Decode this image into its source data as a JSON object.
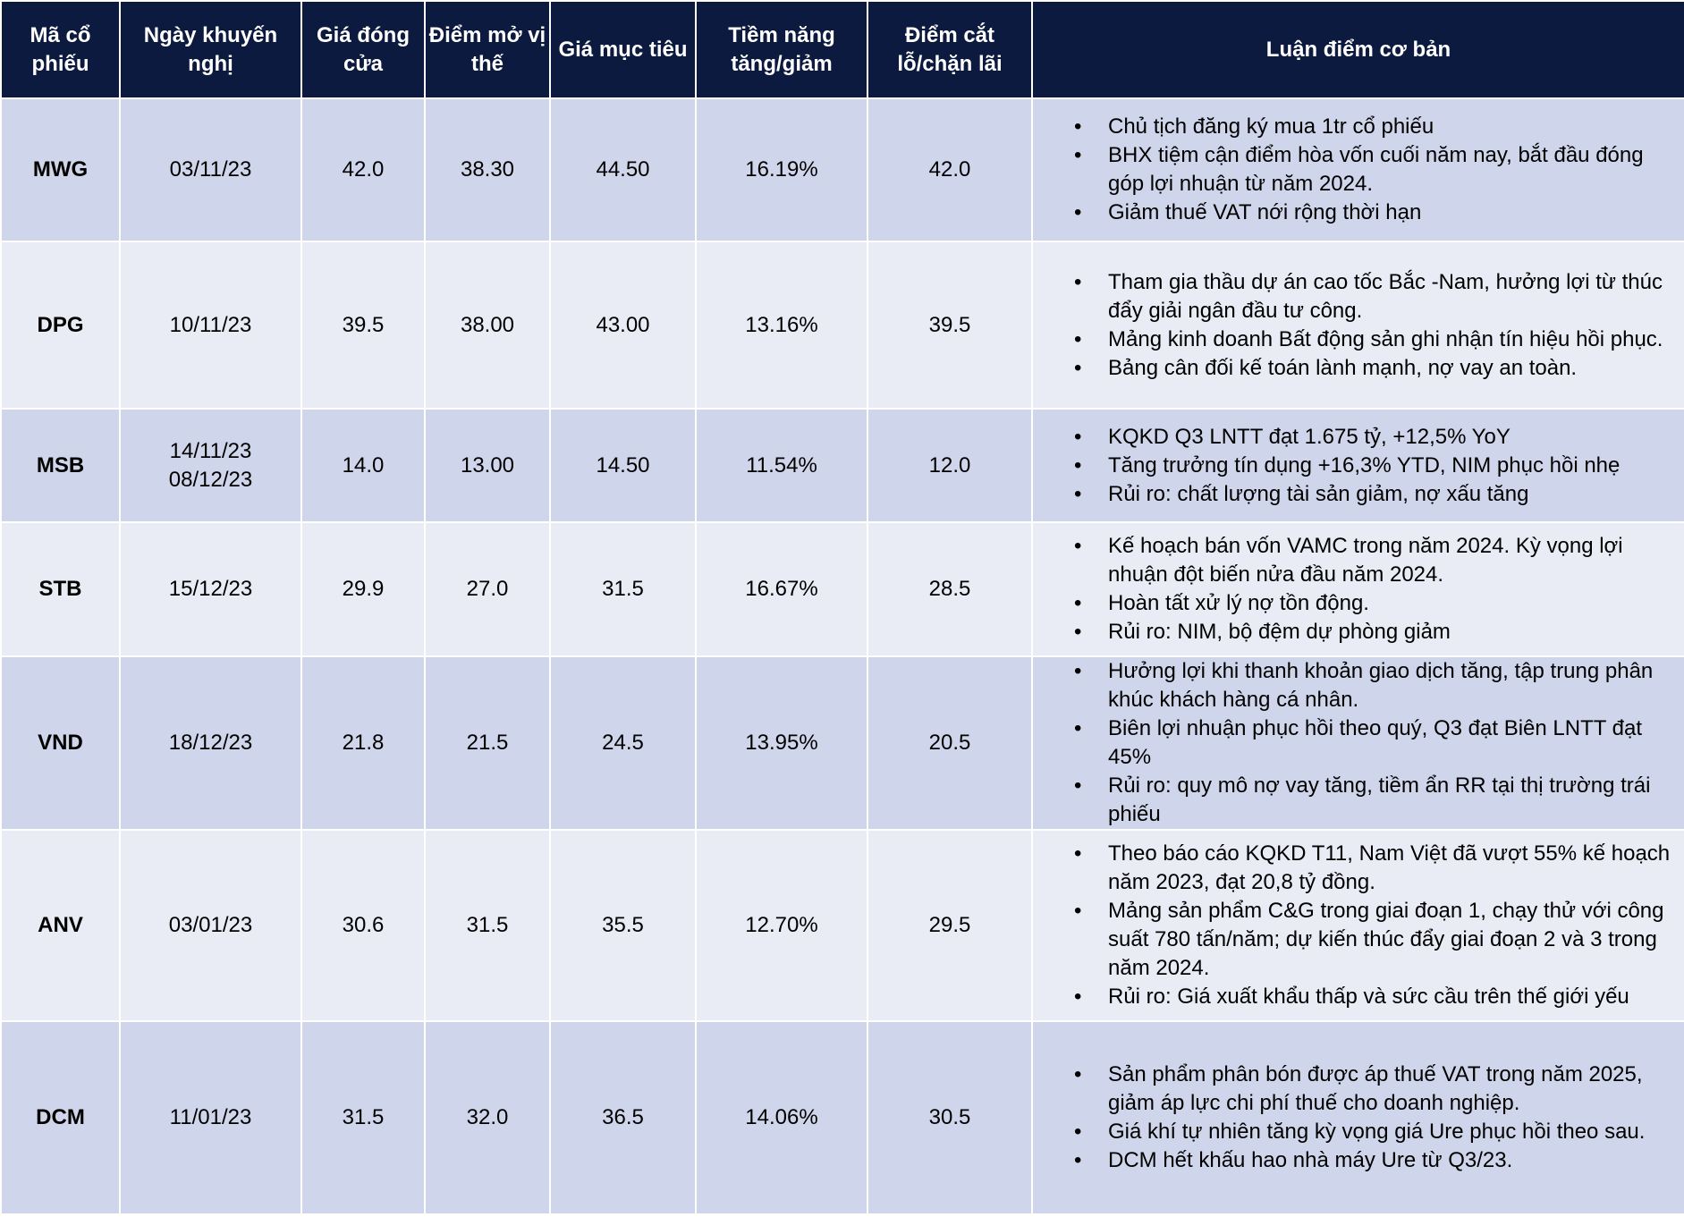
{
  "headers": [
    "Mã cổ phiếu",
    "Ngày khuyến nghị",
    "Giá đóng cửa",
    "Điểm mở vị thế",
    "Giá mục tiêu",
    "Tiềm năng tăng/giảm",
    "Điểm cắt lỗ/chặn lãi",
    "Luận điểm cơ bản"
  ],
  "header_colors": {
    "header_bg": "#0c1a3f",
    "row_odd": "#cfd5ea",
    "row_even": "#e9ebf5"
  },
  "rows": [
    {
      "ticker": "MWG",
      "dates": [
        "03/11/23"
      ],
      "close": "42.0",
      "entry": "38.30",
      "target": "44.50",
      "upside": "16.19%",
      "stop": "42.0",
      "thesis": [
        "Chủ tịch đăng ký mua 1tr cổ phiếu",
        "BHX tiệm cận điểm hòa vốn cuối năm nay, bắt đầu đóng góp lợi nhuận từ năm 2024.",
        "Giảm thuế VAT nới rộng thời hạn"
      ]
    },
    {
      "ticker": "DPG",
      "dates": [
        "10/11/23"
      ],
      "close": "39.5",
      "entry": "38.00",
      "target": "43.00",
      "upside": "13.16%",
      "stop": "39.5",
      "thesis": [
        "Tham gia thầu dự án cao tốc Bắc -Nam, hưởng lợi từ thúc đẩy giải ngân đầu tư công.",
        "Mảng kinh doanh Bất động sản ghi nhận tín hiệu hồi phục.",
        "Bảng cân đối kế toán lành mạnh, nợ vay an toàn."
      ]
    },
    {
      "ticker": "MSB",
      "dates": [
        "14/11/23",
        "08/12/23"
      ],
      "close": "14.0",
      "entry": "13.00",
      "target": "14.50",
      "upside": "11.54%",
      "stop": "12.0",
      "thesis": [
        "KQKD Q3 LNTT đạt 1.675 tỷ, +12,5% YoY",
        "Tăng trưởng tín dụng +16,3% YTD, NIM phục hồi nhẹ",
        "Rủi ro: chất lượng tài sản giảm, nợ xấu tăng"
      ]
    },
    {
      "ticker": "STB",
      "dates": [
        "15/12/23"
      ],
      "close": "29.9",
      "entry": "27.0",
      "target": "31.5",
      "upside": "16.67%",
      "stop": "28.5",
      "thesis": [
        "Kế hoạch bán vốn VAMC trong năm 2024. Kỳ vọng lợi nhuận đột biến nửa đầu năm 2024.",
        "Hoàn tất xử lý nợ tồn động.",
        "Rủi ro: NIM, bộ đệm dự phòng giảm"
      ]
    },
    {
      "ticker": "VND",
      "dates": [
        "18/12/23"
      ],
      "close": "21.8",
      "entry": "21.5",
      "target": "24.5",
      "upside": "13.95%",
      "stop": "20.5",
      "thesis": [
        "Hưởng lợi khi thanh khoản giao dịch tăng, tập trung phân khúc khách hàng cá nhân.",
        "Biên lợi nhuận phục hồi theo quý, Q3 đạt Biên LNTT đạt 45%",
        "Rủi ro: quy mô nợ vay tăng, tiềm ẩn RR tại thị trường trái phiếu"
      ]
    },
    {
      "ticker": "ANV",
      "dates": [
        "03/01/23"
      ],
      "close": "30.6",
      "entry": "31.5",
      "target": "35.5",
      "upside": "12.70%",
      "stop": "29.5",
      "thesis": [
        "Theo báo cáo KQKD T11, Nam Việt đã vượt 55% kế hoạch năm 2023, đạt 20,8 tỷ đồng.",
        "Mảng sản phẩm C&G trong giai đoạn 1, chạy thử với công suất 780 tấn/năm; dự kiến thúc đẩy giai đoạn 2 và 3 trong năm 2024.",
        "Rủi ro: Giá xuất khẩu thấp và sức cầu trên thế giới yếu"
      ]
    },
    {
      "ticker": "DCM",
      "dates": [
        "11/01/23"
      ],
      "close": "31.5",
      "entry": "32.0",
      "target": "36.5",
      "upside": "14.06%",
      "stop": "30.5",
      "thesis": [
        "Sản phẩm phân bón được áp thuế VAT trong năm 2025, giảm áp lực chi phí thuế cho doanh nghiệp.",
        "Giá khí tự nhiên tăng kỳ vọng giá Ure phục hồi theo sau.",
        "DCM hết khấu hao nhà máy Ure từ Q3/23."
      ]
    }
  ]
}
